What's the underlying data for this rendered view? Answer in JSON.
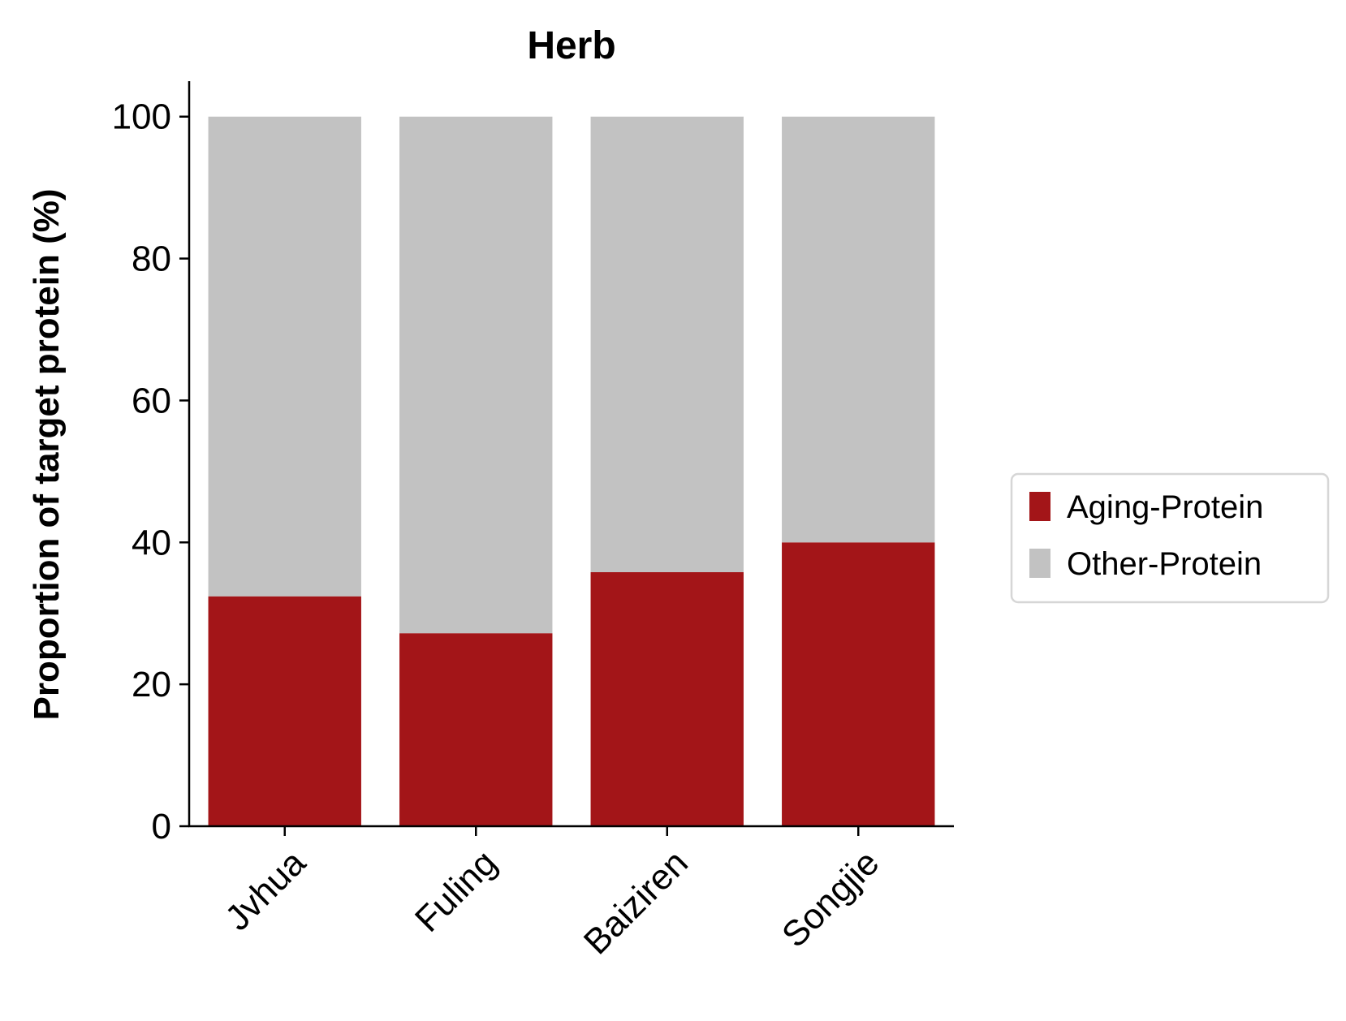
{
  "chart_data": {
    "type": "bar",
    "stacked": true,
    "title": "Herb",
    "xlabel": "",
    "ylabel": "Proportion of target protein (%)",
    "ylim": [
      0,
      105
    ],
    "yticks": [
      0,
      20,
      40,
      60,
      80,
      100
    ],
    "categories": [
      "Jvhua",
      "Fuling",
      "Baiziren",
      "Songjie"
    ],
    "series": [
      {
        "name": "Aging-Protein",
        "color": "#a31518",
        "values": [
          32.4,
          27.2,
          35.8,
          40.0
        ]
      },
      {
        "name": "Other-Protein",
        "color": "#c2c2c2",
        "values": [
          67.6,
          72.8,
          64.2,
          60.0
        ]
      }
    ],
    "grid": false,
    "legend_position": "center-right"
  }
}
